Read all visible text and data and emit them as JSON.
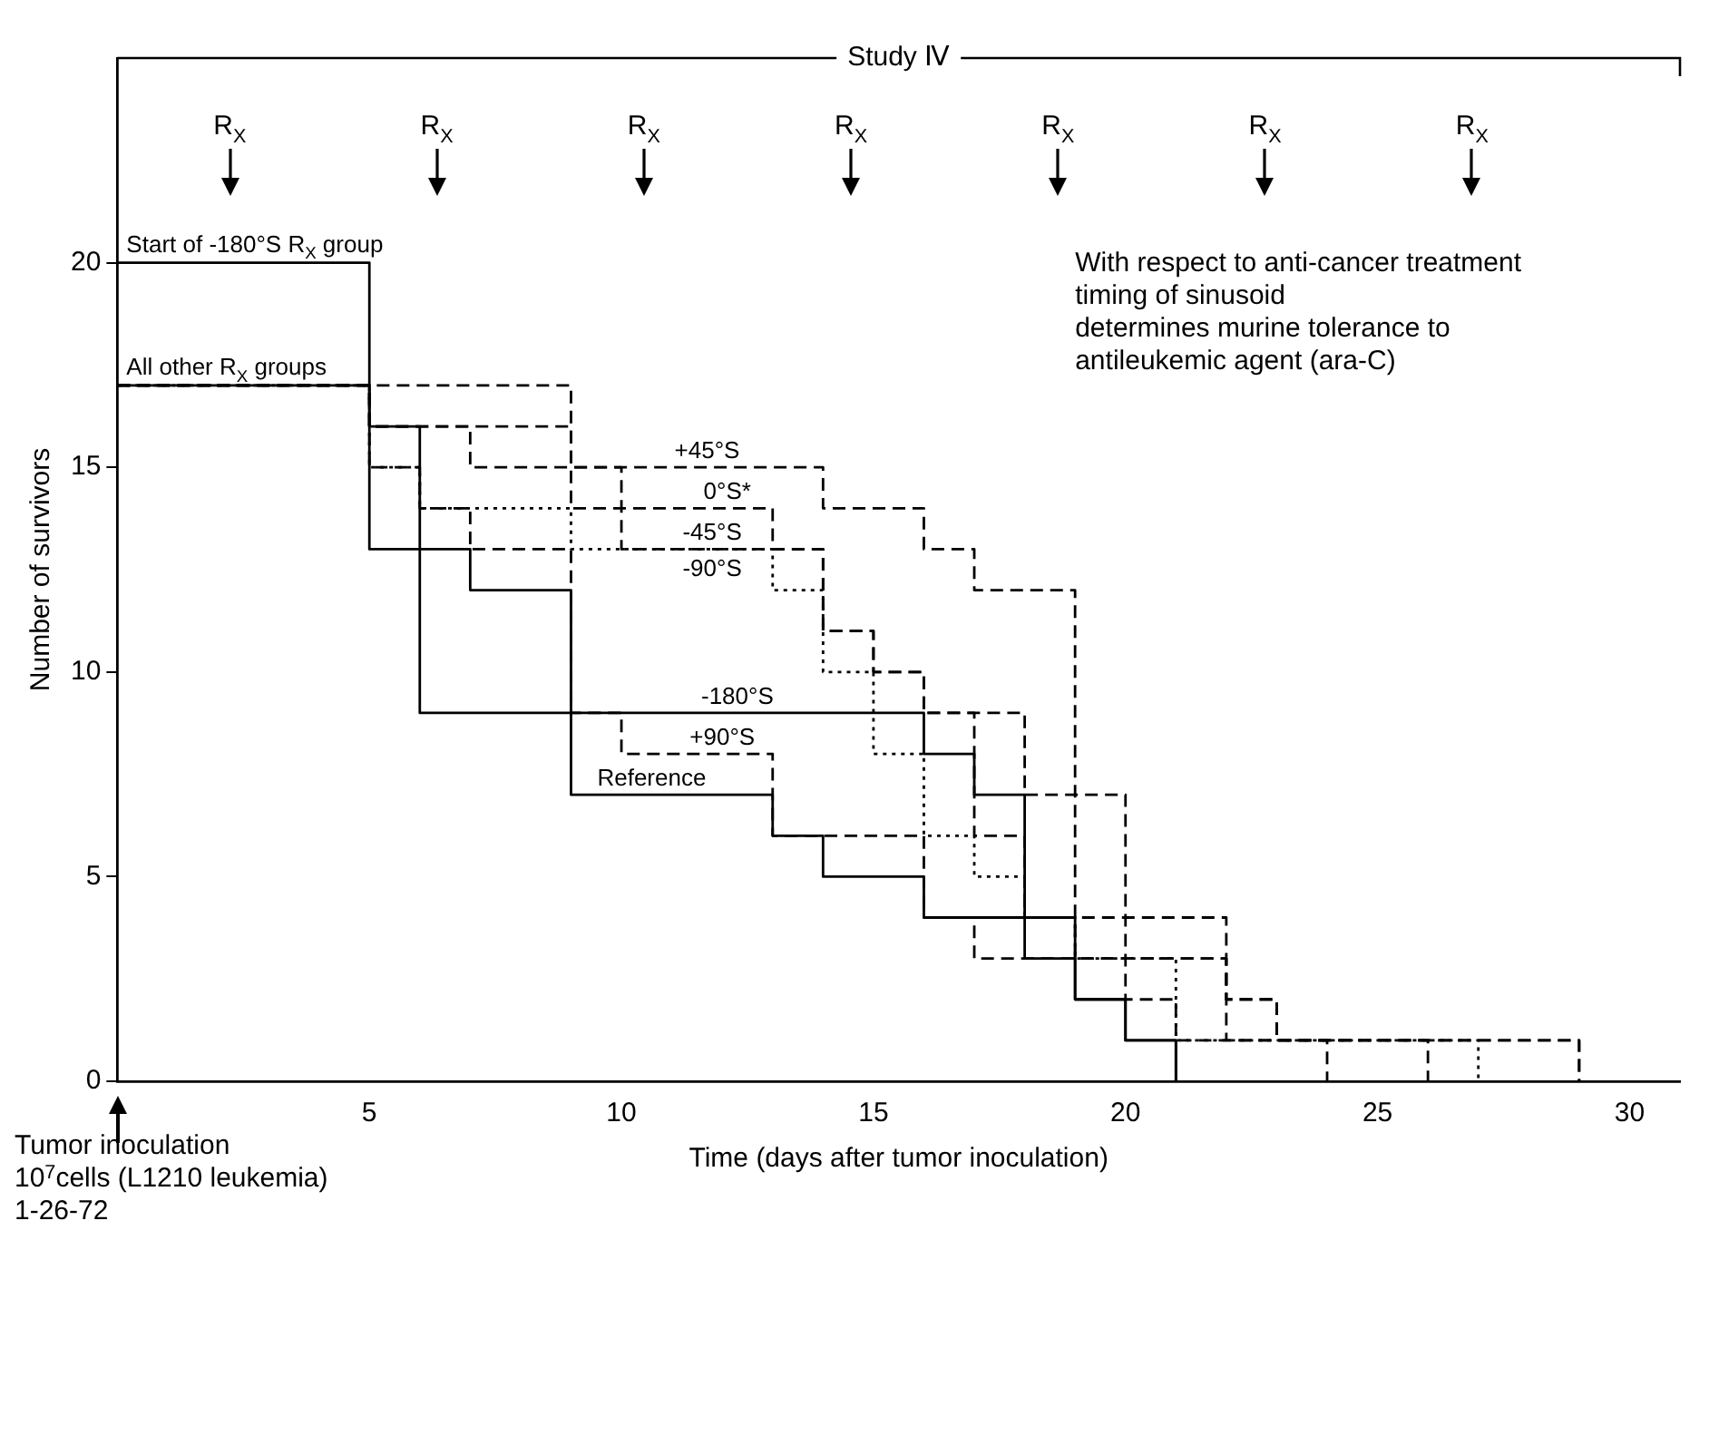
{
  "chart_data": {
    "type": "step",
    "title": "Study Ⅳ",
    "xlabel": "Time (days after tumor inoculation)",
    "ylabel": "Number of survivors",
    "xlim": [
      0,
      31
    ],
    "xticks": [
      5,
      10,
      15,
      20,
      25,
      30
    ],
    "ylim": [
      0,
      25
    ],
    "yticks": [
      0,
      5,
      10,
      15,
      20
    ],
    "grid": false,
    "legend": false,
    "marker": "none",
    "series": [
      {
        "name": "-180°S",
        "color": "#000000",
        "line_style": "solid",
        "x": [
          0,
          5,
          6,
          16,
          17,
          18,
          19,
          20,
          21
        ],
        "values": [
          20,
          16,
          9,
          8,
          7,
          3,
          2,
          1,
          0
        ]
      },
      {
        "name": "Reference",
        "color": "#000000",
        "line_style": "solid",
        "x": [
          0,
          5,
          7,
          9,
          13,
          14,
          16,
          19,
          20,
          21
        ],
        "values": [
          17,
          13,
          12,
          7,
          6,
          5,
          4,
          2,
          1,
          0
        ]
      },
      {
        "name": "+45°S",
        "color": "#000000",
        "line_style": "dashed",
        "x": [
          0,
          9,
          14,
          16,
          17,
          19,
          20,
          22,
          23,
          26
        ],
        "values": [
          17,
          15,
          14,
          13,
          12,
          7,
          4,
          2,
          1,
          0
        ]
      },
      {
        "name": "0°S*",
        "color": "#000000",
        "line_style": "dashed",
        "x": [
          0,
          5,
          9,
          13,
          14,
          15,
          16,
          17,
          18,
          19,
          20,
          21,
          24
        ],
        "values": [
          17,
          16,
          14,
          13,
          11,
          10,
          9,
          6,
          4,
          3,
          2,
          1,
          0
        ]
      },
      {
        "name": "-45°S",
        "color": "#000000",
        "line_style": "dashed",
        "x": [
          0,
          5,
          7,
          8,
          10,
          14,
          15,
          16,
          18,
          19,
          20,
          22,
          29
        ],
        "values": [
          17,
          16,
          15,
          15,
          13,
          11,
          10,
          9,
          7,
          4,
          3,
          1,
          0
        ]
      },
      {
        "name": "-90°S",
        "color": "#000000",
        "line_style": "dotted",
        "x": [
          0,
          5,
          6,
          9,
          13,
          14,
          15,
          16,
          17,
          18,
          19,
          21,
          27
        ],
        "values": [
          17,
          15,
          14,
          13,
          12,
          10,
          8,
          6,
          5,
          4,
          3,
          1,
          0
        ]
      },
      {
        "name": "+90°S",
        "color": "#000000",
        "line_style": "dashed",
        "x": [
          0,
          5,
          6,
          7,
          9,
          10,
          13,
          16,
          17,
          22,
          23,
          24,
          28,
          29
        ],
        "values": [
          17,
          15,
          14,
          13,
          9,
          8,
          6,
          4,
          3,
          2,
          1,
          1,
          1,
          0
        ]
      }
    ],
    "annotations": [
      "Start of -180°S R$_{X}$ group",
      "All other R$_{X}$ groups",
      "R$_{X}$",
      "R$_{X}$",
      "R$_{X}$",
      "R$_{X}$",
      "R$_{X}$",
      "R$_{X}$",
      "R$_{X}$",
      "With respect to anti-cancer treatment\ntiming of sinusoid\ndetermines murine tolerance to\nantileukemic agent (ara-C)",
      "Tumor inoculation\n10$^{7}$cells (L1210 leukemia)\n1-26-72"
    ]
  }
}
